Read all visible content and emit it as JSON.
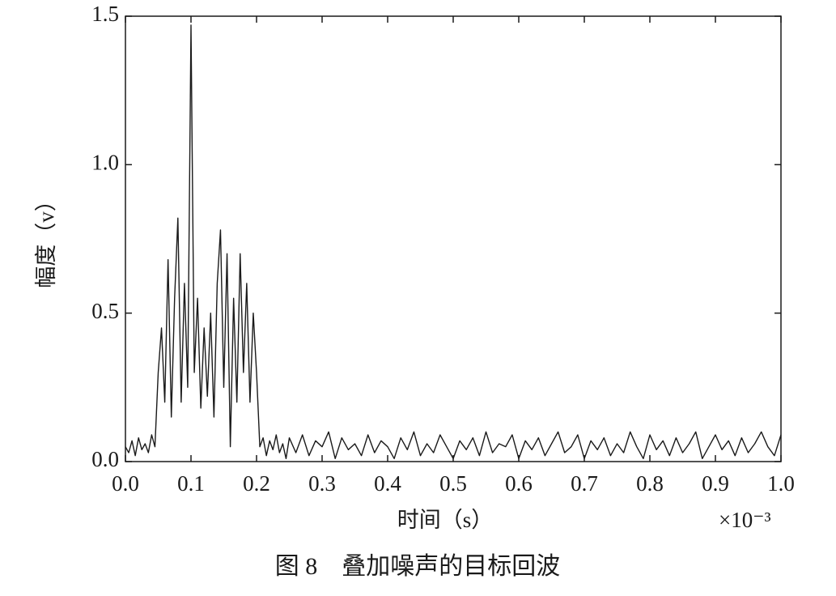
{
  "chart_data": {
    "type": "line",
    "caption": "图 8　叠加噪声的目标回波",
    "x_label": "时间（s）",
    "y_label": "幅度（v）",
    "x_multiplier": "×10⁻³",
    "color": "#1a1a1a",
    "xlim": [
      0,
      1.0
    ],
    "ylim": [
      0,
      1.5
    ],
    "xticks": [
      {
        "value": 0,
        "label": "0.0"
      },
      0.1,
      0.2,
      0.3,
      0.4,
      0.5,
      0.6,
      0.7,
      0.8,
      0.9,
      {
        "value": 1.0,
        "label": "1.0"
      }
    ],
    "yticks": [
      {
        "value": 0,
        "label": "0.0"
      },
      0.5,
      {
        "value": 1.0,
        "label": "1.0"
      },
      1.5
    ],
    "series": [
      {
        "name": "回波",
        "x": [
          0,
          0.005,
          0.01,
          0.015,
          0.02,
          0.025,
          0.03,
          0.035,
          0.04,
          0.045,
          0.05,
          0.055,
          0.06,
          0.065,
          0.07,
          0.075,
          0.08,
          0.085,
          0.09,
          0.095,
          0.1,
          0.105,
          0.11,
          0.115,
          0.12,
          0.125,
          0.13,
          0.135,
          0.14,
          0.145,
          0.15,
          0.155,
          0.16,
          0.165,
          0.17,
          0.175,
          0.18,
          0.185,
          0.19,
          0.195,
          0.2,
          0.205,
          0.21,
          0.215,
          0.22,
          0.225,
          0.23,
          0.235,
          0.24,
          0.245,
          0.25,
          0.26,
          0.27,
          0.28,
          0.29,
          0.3,
          0.31,
          0.32,
          0.33,
          0.34,
          0.35,
          0.36,
          0.37,
          0.38,
          0.39,
          0.4,
          0.41,
          0.42,
          0.43,
          0.44,
          0.45,
          0.46,
          0.47,
          0.48,
          0.49,
          0.5,
          0.51,
          0.52,
          0.53,
          0.54,
          0.55,
          0.56,
          0.57,
          0.58,
          0.59,
          0.6,
          0.61,
          0.62,
          0.63,
          0.64,
          0.65,
          0.66,
          0.67,
          0.68,
          0.69,
          0.7,
          0.71,
          0.72,
          0.73,
          0.74,
          0.75,
          0.76,
          0.77,
          0.78,
          0.79,
          0.8,
          0.81,
          0.82,
          0.83,
          0.84,
          0.85,
          0.86,
          0.87,
          0.88,
          0.89,
          0.9,
          0.91,
          0.92,
          0.93,
          0.94,
          0.95,
          0.96,
          0.97,
          0.98,
          0.99,
          1.0
        ],
        "values": [
          0.05,
          0.03,
          0.07,
          0.02,
          0.08,
          0.04,
          0.06,
          0.03,
          0.09,
          0.05,
          0.3,
          0.45,
          0.2,
          0.68,
          0.15,
          0.55,
          0.82,
          0.2,
          0.6,
          0.25,
          1.47,
          0.3,
          0.55,
          0.18,
          0.45,
          0.22,
          0.5,
          0.15,
          0.6,
          0.78,
          0.25,
          0.7,
          0.05,
          0.55,
          0.2,
          0.7,
          0.3,
          0.6,
          0.2,
          0.5,
          0.3,
          0.05,
          0.08,
          0.02,
          0.07,
          0.04,
          0.09,
          0.03,
          0.06,
          0.01,
          0.08,
          0.03,
          0.09,
          0.02,
          0.07,
          0.05,
          0.1,
          0.01,
          0.08,
          0.04,
          0.06,
          0.02,
          0.09,
          0.03,
          0.07,
          0.05,
          0.01,
          0.08,
          0.04,
          0.1,
          0.02,
          0.06,
          0.03,
          0.09,
          0.05,
          0.01,
          0.07,
          0.04,
          0.08,
          0.02,
          0.1,
          0.03,
          0.06,
          0.05,
          0.09,
          0.01,
          0.07,
          0.04,
          0.08,
          0.02,
          0.06,
          0.1,
          0.03,
          0.05,
          0.09,
          0.01,
          0.07,
          0.04,
          0.08,
          0.02,
          0.06,
          0.03,
          0.1,
          0.05,
          0.01,
          0.09,
          0.04,
          0.07,
          0.02,
          0.08,
          0.03,
          0.06,
          0.1,
          0.01,
          0.05,
          0.09,
          0.04,
          0.07,
          0.02,
          0.08,
          0.03,
          0.06,
          0.1,
          0.05,
          0.02,
          0.09
        ]
      }
    ]
  }
}
